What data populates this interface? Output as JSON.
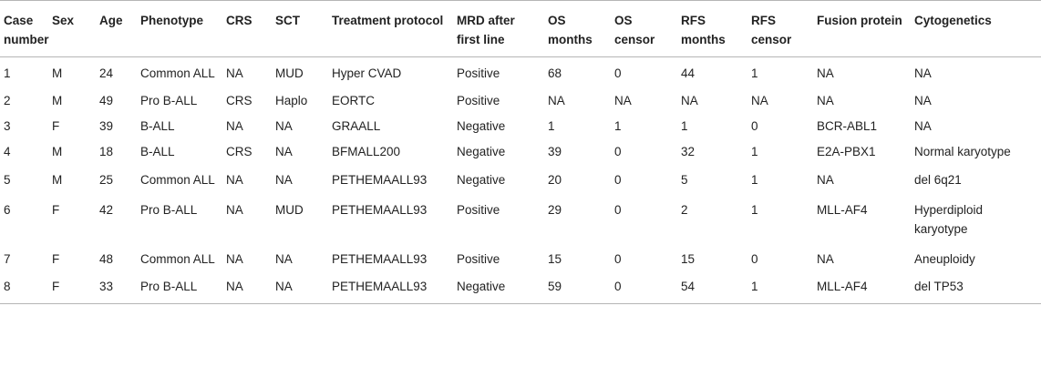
{
  "table": {
    "headers": [
      "Case number",
      "Sex",
      "Age",
      "Phenotype",
      "CRS",
      "SCT",
      "Treatment protocol",
      "MRD after first line",
      "OS months",
      "OS censor",
      "RFS months",
      "RFS censor",
      "Fusion protein",
      "Cytogenetics"
    ],
    "rows": [
      [
        "1",
        "M",
        "24",
        "Common ALL",
        "NA",
        "MUD",
        "Hyper CVAD",
        "Positive",
        "68",
        "0",
        "44",
        "1",
        "NA",
        "NA"
      ],
      [
        "2",
        "M",
        "49",
        "Pro B-ALL",
        "CRS",
        "Haplo",
        "EORTC",
        "Positive",
        "NA",
        "NA",
        "NA",
        "NA",
        "NA",
        "NA"
      ],
      [
        "3",
        "F",
        "39",
        "B-ALL",
        "NA",
        "NA",
        "GRAALL",
        "Negative",
        "1",
        "1",
        "1",
        "0",
        "BCR-ABL1",
        "NA"
      ],
      [
        "4",
        "M",
        "18",
        "B-ALL",
        "CRS",
        "NA",
        "BFMALL200",
        "Negative",
        "39",
        "0",
        "32",
        "1",
        "E2A-PBX1",
        "Normal karyotype"
      ],
      [
        "5",
        "M",
        "25",
        "Common ALL",
        "NA",
        "NA",
        "PETHEMAALL93",
        "Negative",
        "20",
        "0",
        "5",
        "1",
        "NA",
        "del 6q21"
      ],
      [
        "6",
        "F",
        "42",
        "Pro B-ALL",
        "NA",
        "MUD",
        "PETHEMAALL93",
        "Positive",
        "29",
        "0",
        "2",
        "1",
        "MLL-AF4",
        "Hyperdiploid karyotype"
      ],
      [
        "7",
        "F",
        "48",
        "Common ALL",
        "NA",
        "NA",
        "PETHEMAALL93",
        "Positive",
        "15",
        "0",
        "15",
        "0",
        "NA",
        "Aneuploidy"
      ],
      [
        "8",
        "F",
        "33",
        "Pro B-ALL",
        "NA",
        "NA",
        "PETHEMAALL93",
        "Negative",
        "59",
        "0",
        "54",
        "1",
        "MLL-AF4",
        "del TP53"
      ]
    ]
  }
}
